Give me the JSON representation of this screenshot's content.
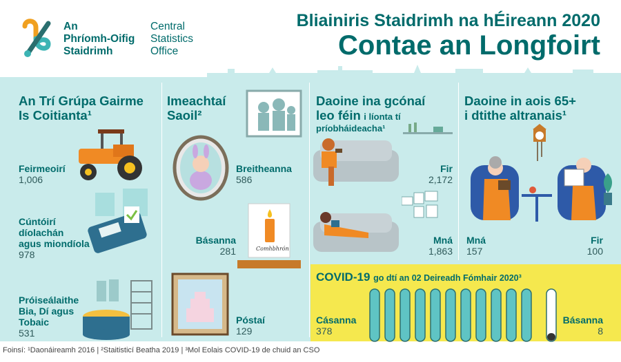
{
  "header": {
    "org_irish": [
      "An",
      "Phríomh-Oifig",
      "Staidrimh"
    ],
    "org_english": [
      "Central",
      "Statistics",
      "Office"
    ],
    "title_line1": "Bliainiris Staidrimh na hÉireann 2020",
    "title_line2": "Contae an Longfoirt"
  },
  "sections": {
    "occupations": {
      "heading": [
        "An Trí Grúpa Gairme",
        "Is Coitianta¹"
      ],
      "items": [
        {
          "label": [
            "Feirmeoirí"
          ],
          "value": "1,006"
        },
        {
          "label": [
            "Cúntóirí",
            "díolachán",
            "agus miondíola"
          ],
          "value": "978"
        },
        {
          "label": [
            "Próiseálaithe",
            "Bia, Dí agus",
            "Tobaic"
          ],
          "value": "531"
        }
      ]
    },
    "life_events": {
      "heading": [
        "Imeachtaí",
        "Saoil²"
      ],
      "items": [
        {
          "label": "Breitheanna",
          "value": "586"
        },
        {
          "label": "Básanna",
          "value": "281"
        },
        {
          "label": "Póstaí",
          "value": "129"
        }
      ],
      "card_text": "Comhbhrón"
    },
    "living_alone": {
      "heading_big": [
        "Daoine ina gcónaí",
        "leo féin"
      ],
      "heading_small": [
        "i líonta tí",
        "príobháideacha¹"
      ],
      "men": {
        "label": "Fir",
        "value": "2,172"
      },
      "women": {
        "label": "Mná",
        "value": "1,863"
      }
    },
    "nursing_homes": {
      "heading": [
        "Daoine in aois 65+",
        "i dtithe altranais¹"
      ],
      "women": {
        "label": "Mná",
        "value": "157"
      },
      "men": {
        "label": "Fir",
        "value": "100"
      }
    },
    "covid": {
      "title_big": "COVID-19",
      "title_small": "go dtí an 02 Deireadh Fómhair 2020³",
      "cases": {
        "label": "Cásanna",
        "value": "378"
      },
      "deaths": {
        "label": "Básanna",
        "value": "8"
      }
    }
  },
  "footer": "Foinsí: ¹Daonáireamh 2016 | ²Staitisticí Beatha 2019 | ³Mol Eolais COVID-19 de chuid an CSO",
  "colors": {
    "teal": "#006b6b",
    "panel": "#c9ebeb",
    "covid_yellow": "#f5e84e",
    "orange": "#f08a24"
  }
}
